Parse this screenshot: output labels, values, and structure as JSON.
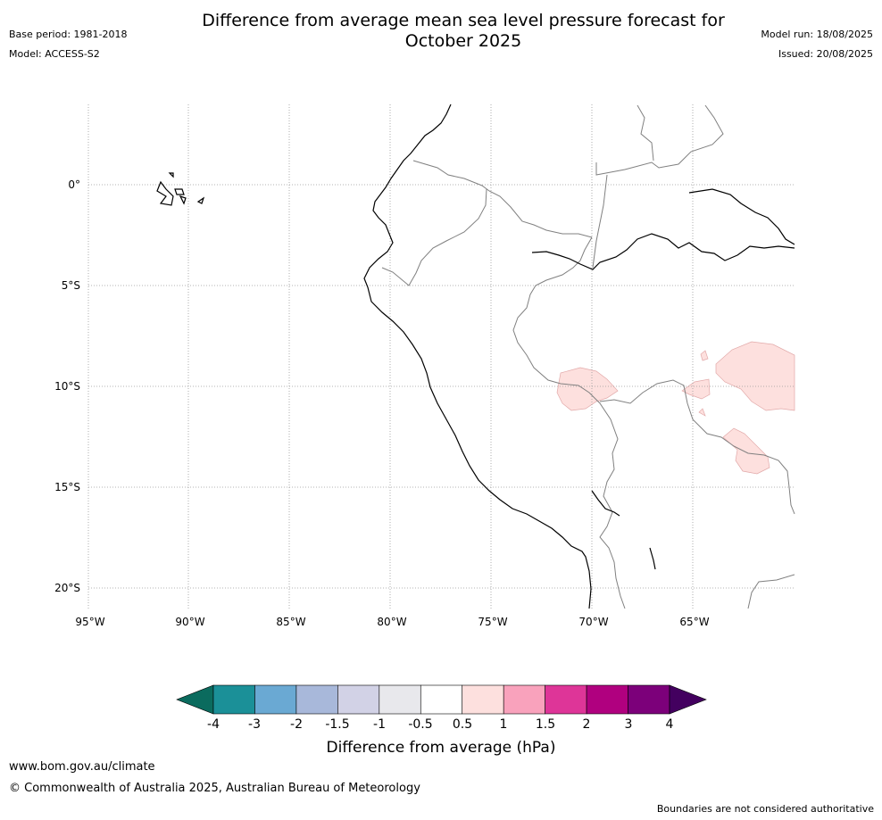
{
  "header": {
    "title_line1": "Difference from average mean sea level pressure forecast for",
    "title_line2": "October 2025",
    "base_period": "Base period: 1981-2018",
    "model": "Model: ACCESS-S2",
    "model_run": "Model run: 18/08/2025",
    "issued": "Issued: 20/08/2025"
  },
  "map": {
    "lat_labels": [
      "0°",
      "5°S",
      "10°S",
      "15°S",
      "20°S"
    ],
    "lon_labels": [
      "95°W",
      "90°W",
      "85°W",
      "80°W",
      "75°W",
      "70°W",
      "65°W"
    ]
  },
  "colorbar": {
    "title": "Difference from average (hPa)",
    "tick_labels": [
      "-4",
      "-3",
      "-2",
      "-1.5",
      "-1",
      "-0.5",
      "0.5",
      "1",
      "1.5",
      "2",
      "3",
      "4"
    ],
    "under_color": "#0b6b5e",
    "over_color": "#43005f",
    "colors": [
      "#1b9098",
      "#6aa9d3",
      "#a8b8da",
      "#d2d2e6",
      "#e8e8ec",
      "#ffffff",
      "#fde0de",
      "#f9a2bc",
      "#de3598",
      "#b0007f",
      "#7c007a"
    ]
  },
  "footer": {
    "url": "www.bom.gov.au/climate",
    "copyright": "© Commonwealth of Australia 2025, Australian Bureau of Meteorology",
    "disclaimer": "Boundaries are not considered authoritative"
  }
}
